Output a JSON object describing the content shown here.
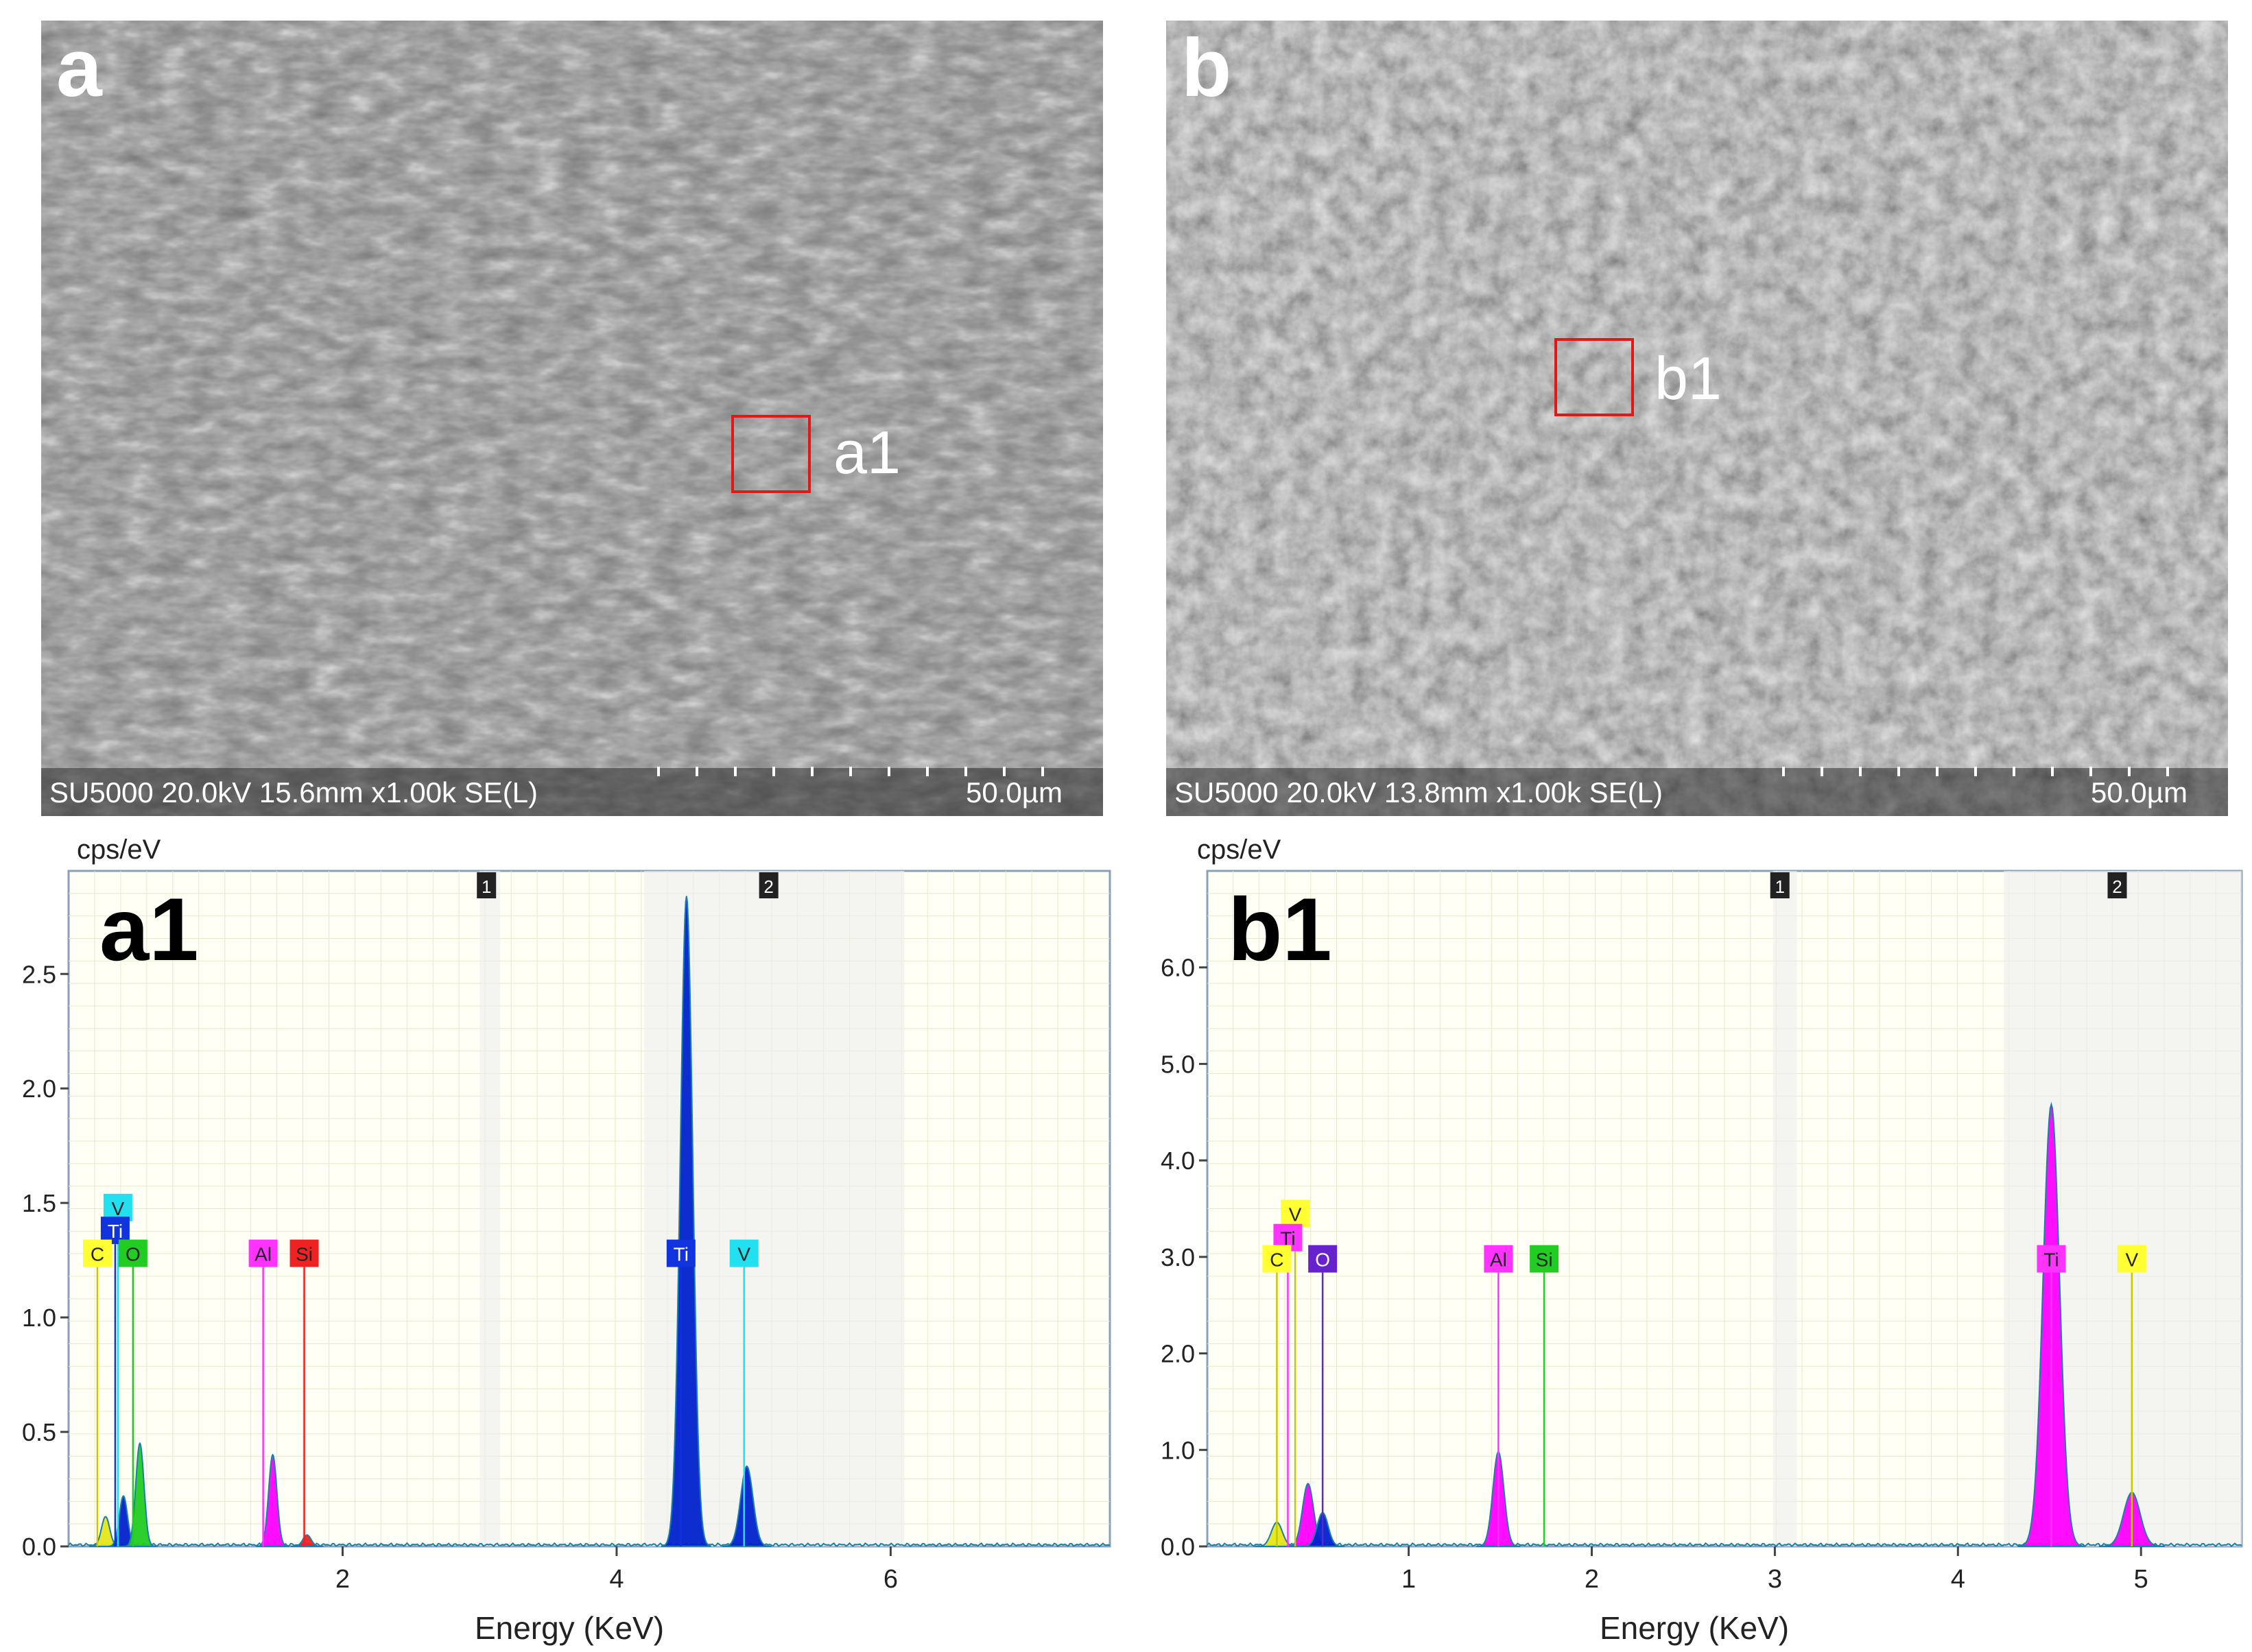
{
  "panels": {
    "a": {
      "letter": "a",
      "caption": "SU5000 20.0kV 15.6mm x1.00k SE(L)",
      "scale": "50.0µm",
      "roi": "a1"
    },
    "b": {
      "letter": "b",
      "caption": "SU5000 20.0kV 13.8mm x1.00k SE(L)",
      "scale": "50.0µm",
      "roi": "b1"
    }
  },
  "chart_data": [
    {
      "type": "line",
      "panel_label": "a1",
      "title": "",
      "xlabel": "Energy (KeV)",
      "ylabel": "cps/eV",
      "xlim": [
        0,
        7.6
      ],
      "ylim": [
        0,
        2.95
      ],
      "x_ticks": [
        "2",
        "4",
        "6"
      ],
      "y_ticks": [
        "0.0",
        "0.5",
        "1.0",
        "1.5",
        "2.0",
        "2.5"
      ],
      "region_markers": [
        "1",
        "2"
      ],
      "grid": true,
      "colors": {
        "trace": "#1a7fa8",
        "ti": "#0022cc",
        "v": "#00d8e8",
        "c": "#ffff33",
        "o": "#22cc22",
        "al": "#ff00ff",
        "si": "#ff2222"
      },
      "element_labels": [
        {
          "label": "V",
          "energy": 0.36,
          "level": 1.48,
          "color": "#22e0f0"
        },
        {
          "label": "Ti",
          "energy": 0.34,
          "level": 1.38,
          "color": "#1133dd"
        },
        {
          "label": "C",
          "energy": 0.21,
          "level": 1.28,
          "color": "#ffff33"
        },
        {
          "label": "O",
          "energy": 0.47,
          "level": 1.28,
          "color": "#22cc22"
        },
        {
          "label": "Al",
          "energy": 1.42,
          "level": 1.28,
          "color": "#ff33ff"
        },
        {
          "label": "Si",
          "energy": 1.72,
          "level": 1.28,
          "color": "#ee2222"
        },
        {
          "label": "Ti",
          "energy": 4.47,
          "level": 1.28,
          "color": "#1133dd"
        },
        {
          "label": "V",
          "energy": 4.93,
          "level": 1.28,
          "color": "#22e0f0"
        }
      ],
      "series": [
        {
          "name": "C K",
          "energy": 0.27,
          "height": 0.13,
          "color": "#e6e61a"
        },
        {
          "name": "Ti L",
          "energy": 0.4,
          "height": 0.22,
          "color": "#0022cc"
        },
        {
          "name": "O K",
          "energy": 0.52,
          "height": 0.45,
          "color": "#22cc22"
        },
        {
          "name": "Al K",
          "energy": 1.49,
          "height": 0.4,
          "color": "#ff00ff"
        },
        {
          "name": "Si K",
          "energy": 1.74,
          "height": 0.05,
          "color": "#ee2222"
        },
        {
          "name": "Ti Ka",
          "energy": 4.51,
          "height": 2.84,
          "color": "#0022cc"
        },
        {
          "name": "V Ka",
          "energy": 4.95,
          "height": 0.35,
          "color": "#0022cc"
        }
      ]
    },
    {
      "type": "line",
      "panel_label": "b1",
      "title": "",
      "xlabel": "Energy (KeV)",
      "ylabel": "cps/eV",
      "xlim": [
        -0.1,
        5.55
      ],
      "ylim": [
        0,
        7.0
      ],
      "x_ticks": [
        "1",
        "2",
        "3",
        "4",
        "5"
      ],
      "y_ticks": [
        "0.0",
        "1.0",
        "2.0",
        "3.0",
        "4.0",
        "5.0",
        "6.0"
      ],
      "region_markers": [
        "1",
        "2"
      ],
      "grid": true,
      "colors": {
        "trace": "#1a7fa8",
        "ti": "#ff00ff",
        "v": "#ffff33",
        "c": "#ffff33",
        "o": "#5522cc",
        "al": "#ff00ff",
        "si": "#22cc22"
      },
      "element_labels": [
        {
          "label": "V",
          "energy": 0.38,
          "level": 3.45,
          "color": "#ffff33"
        },
        {
          "label": "Ti",
          "energy": 0.34,
          "level": 3.2,
          "color": "#ff33ff"
        },
        {
          "label": "C",
          "energy": 0.28,
          "level": 2.98,
          "color": "#ffff33"
        },
        {
          "label": "O",
          "energy": 0.53,
          "level": 2.98,
          "color": "#6622cc"
        },
        {
          "label": "Al",
          "energy": 1.49,
          "level": 2.98,
          "color": "#ff33ff"
        },
        {
          "label": "Si",
          "energy": 1.74,
          "level": 2.98,
          "color": "#22cc22"
        },
        {
          "label": "Ti",
          "energy": 4.51,
          "level": 2.98,
          "color": "#ff33ff"
        },
        {
          "label": "V",
          "energy": 4.95,
          "level": 2.98,
          "color": "#ffff33"
        }
      ],
      "series": [
        {
          "name": "C K",
          "energy": 0.28,
          "height": 0.25,
          "color": "#e6e61a"
        },
        {
          "name": "Ti L",
          "energy": 0.45,
          "height": 0.65,
          "color": "#ff00ff"
        },
        {
          "name": "O K",
          "energy": 0.53,
          "height": 0.35,
          "color": "#0022cc"
        },
        {
          "name": "Al K",
          "energy": 1.49,
          "height": 0.98,
          "color": "#ff00ff"
        },
        {
          "name": "Ti Ka",
          "energy": 4.51,
          "height": 4.58,
          "color": "#ff00ff"
        },
        {
          "name": "V Ka",
          "energy": 4.95,
          "height": 0.56,
          "color": "#ff00ff"
        }
      ]
    }
  ]
}
